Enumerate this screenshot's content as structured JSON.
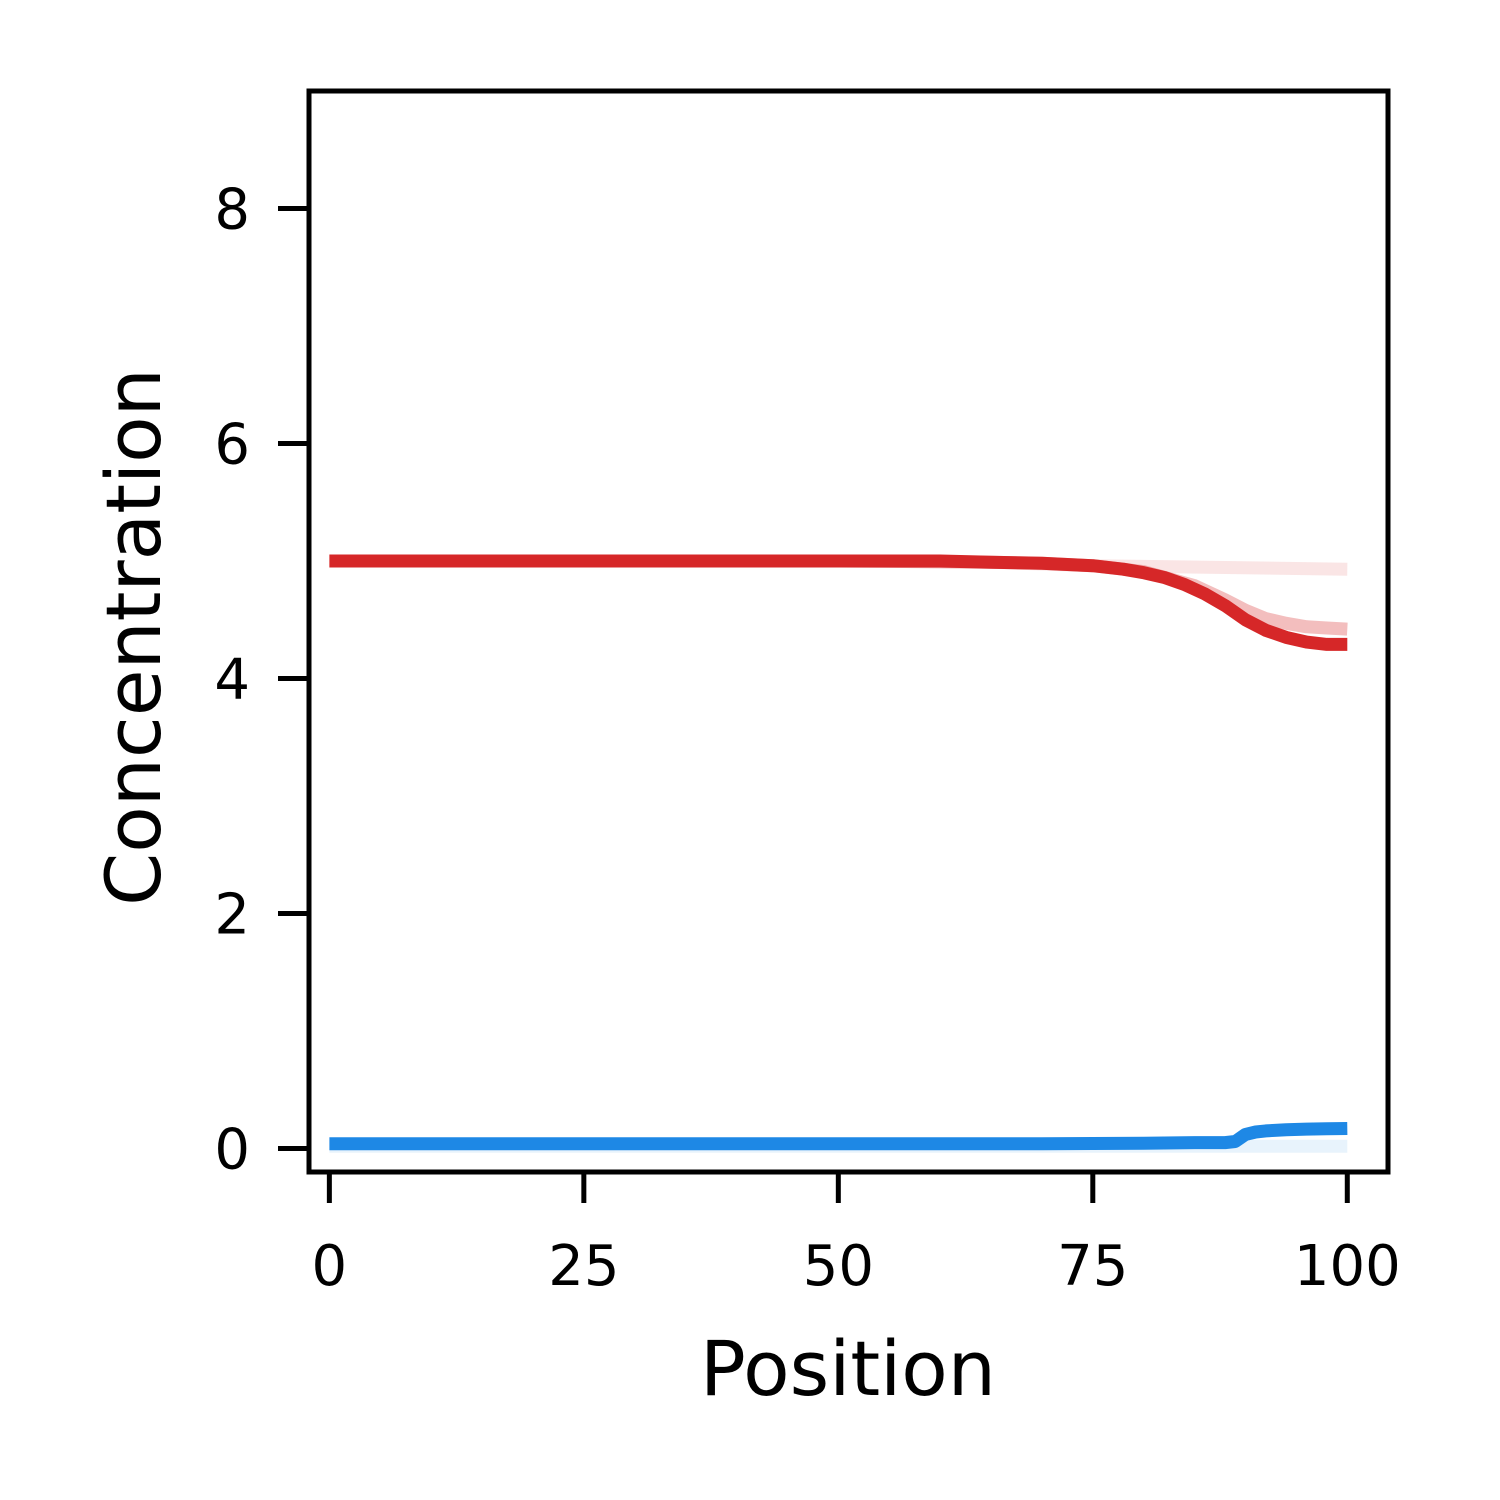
{
  "chart_data": {
    "type": "line",
    "title": "",
    "xlabel": "Position",
    "ylabel": "Concentration",
    "xlim": [
      -2,
      104
    ],
    "ylim": [
      -0.2,
      9
    ],
    "xticks": [
      0,
      25,
      50,
      75,
      100
    ],
    "xtick_labels": [
      "0",
      "25",
      "50",
      "75",
      "100"
    ],
    "yticks": [
      0,
      2,
      4,
      6,
      8
    ],
    "ytick_labels": [
      "0",
      "2",
      "4",
      "6",
      "8"
    ],
    "grid": false,
    "legend": "none",
    "series": [
      {
        "name": "red-faint",
        "color": "#d62728",
        "opacity": 0.12,
        "x": [
          0,
          50,
          65,
          75,
          100
        ],
        "y": [
          5.0,
          5.0,
          4.99,
          4.96,
          4.93
        ]
      },
      {
        "name": "red-mid",
        "color": "#d62728",
        "opacity": 0.3,
        "x": [
          0,
          50,
          65,
          70,
          75,
          80,
          85,
          88,
          90,
          92,
          94,
          96,
          98,
          100
        ],
        "y": [
          5.0,
          5.0,
          4.99,
          4.98,
          4.96,
          4.91,
          4.79,
          4.67,
          4.58,
          4.51,
          4.47,
          4.44,
          4.43,
          4.42
        ]
      },
      {
        "name": "red-main",
        "color": "#d62728",
        "opacity": 1,
        "x": [
          0,
          50,
          60,
          65,
          70,
          75,
          78,
          80,
          82,
          84,
          86,
          88,
          90,
          92,
          94,
          96,
          98,
          100
        ],
        "y": [
          5.0,
          5.0,
          5.0,
          4.99,
          4.98,
          4.96,
          4.93,
          4.9,
          4.86,
          4.8,
          4.72,
          4.62,
          4.5,
          4.41,
          4.35,
          4.31,
          4.29,
          4.29
        ]
      },
      {
        "name": "blue-faint",
        "color": "#1e88e5",
        "opacity": 0.1,
        "x": [
          0,
          88,
          89,
          100
        ],
        "y": [
          0.02,
          0.02,
          0.02,
          0.02
        ]
      },
      {
        "name": "blue-main",
        "color": "#1e88e5",
        "opacity": 1,
        "x": [
          0,
          70,
          80,
          85,
          88,
          89,
          89.5,
          90,
          91,
          92,
          94,
          96,
          98,
          100
        ],
        "y": [
          0.04,
          0.04,
          0.045,
          0.05,
          0.05,
          0.06,
          0.09,
          0.12,
          0.14,
          0.15,
          0.16,
          0.165,
          0.168,
          0.17
        ]
      }
    ]
  }
}
